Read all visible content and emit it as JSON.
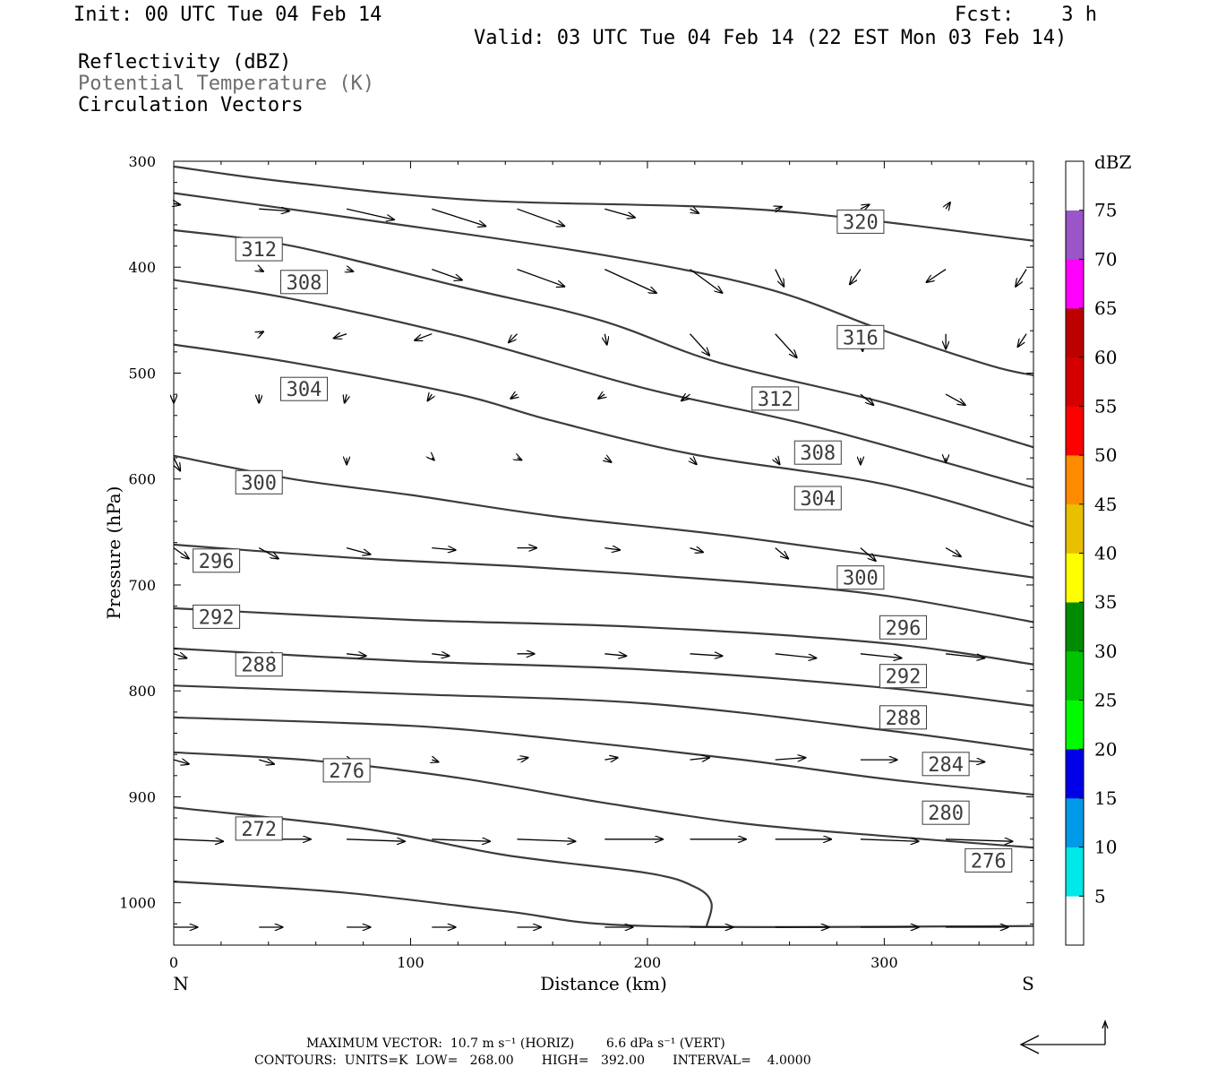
{
  "header": {
    "init": "Init: 00 UTC Tue 04 Feb 14",
    "fcst": "Fcst:    3 h",
    "valid": "Valid: 03 UTC Tue 04 Feb 14 (22 EST Mon 03 Feb 14)"
  },
  "legend": {
    "line1": "Reflectivity (dBZ)",
    "line2": "Potential Temperature (K)",
    "line3": "Circulation Vectors"
  },
  "footer": {
    "line1": "MAXIMUM VECTOR:  10.7 m s⁻¹ (HORIZ)        6.6 dPa s⁻¹ (VERT)",
    "line2": "CONTOURS:  UNITS=K  LOW=   268.00       HIGH=   392.00       INTERVAL=    4.0000"
  },
  "colorbar": {
    "unit": "dBZ",
    "ticks": [
      "5",
      "10",
      "15",
      "20",
      "25",
      "30",
      "35",
      "40",
      "45",
      "50",
      "55",
      "60",
      "65",
      "70",
      "75"
    ],
    "colors": [
      "#ffffff",
      "#00e8e8",
      "#009ae8",
      "#0000e8",
      "#00fa00",
      "#00c400",
      "#008c00",
      "#ffff00",
      "#e8c000",
      "#ff8c00",
      "#ff0000",
      "#d40000",
      "#bc0000",
      "#ff00ff",
      "#9a55c8",
      "#ffffff"
    ]
  },
  "chart_data": {
    "type": "contour-vector-cross-section",
    "xlabel": "Distance (km)",
    "ylabel": "Pressure (hPa)",
    "xlim": [
      0,
      363
    ],
    "ylim": [
      300,
      1040
    ],
    "x_ticks": [
      "0",
      "100",
      "200",
      "300"
    ],
    "x_tick_values": [
      0,
      100,
      200,
      300
    ],
    "y_ticks": [
      "300",
      "400",
      "500",
      "600",
      "700",
      "800",
      "900",
      "1000"
    ],
    "y_tick_values": [
      300,
      400,
      500,
      600,
      700,
      800,
      900,
      1000
    ],
    "left_end": "N",
    "right_end": "S",
    "contour_color": "#3c3c3c",
    "contours": [
      {
        "theta": 320,
        "points": [
          [
            0,
            305
          ],
          [
            50,
            320
          ],
          [
            130,
            337
          ],
          [
            250,
            346
          ],
          [
            363,
            375
          ]
        ]
      },
      {
        "theta": 316,
        "points": [
          [
            0,
            330
          ],
          [
            80,
            355
          ],
          [
            180,
            388
          ],
          [
            250,
            420
          ],
          [
            300,
            460
          ],
          [
            345,
            493
          ],
          [
            363,
            502
          ]
        ]
      },
      {
        "theta": 312,
        "points": [
          [
            0,
            365
          ],
          [
            50,
            380
          ],
          [
            120,
            418
          ],
          [
            180,
            450
          ],
          [
            230,
            490
          ],
          [
            300,
            528
          ],
          [
            363,
            570
          ]
        ]
      },
      {
        "theta": 308,
        "points": [
          [
            0,
            412
          ],
          [
            50,
            430
          ],
          [
            120,
            465
          ],
          [
            200,
            515
          ],
          [
            270,
            550
          ],
          [
            363,
            608
          ]
        ]
      },
      {
        "theta": 304,
        "points": [
          [
            0,
            473
          ],
          [
            50,
            490
          ],
          [
            120,
            520
          ],
          [
            160,
            545
          ],
          [
            220,
            577
          ],
          [
            300,
            605
          ],
          [
            363,
            645
          ]
        ]
      },
      {
        "theta": 300,
        "points": [
          [
            0,
            578
          ],
          [
            50,
            600
          ],
          [
            100,
            615
          ],
          [
            160,
            635
          ],
          [
            240,
            655
          ],
          [
            363,
            693
          ]
        ]
      },
      {
        "theta": 296,
        "points": [
          [
            0,
            662
          ],
          [
            80,
            675
          ],
          [
            150,
            683
          ],
          [
            240,
            697
          ],
          [
            300,
            710
          ],
          [
            363,
            735
          ]
        ]
      },
      {
        "theta": 292,
        "points": [
          [
            0,
            722
          ],
          [
            100,
            733
          ],
          [
            200,
            740
          ],
          [
            300,
            755
          ],
          [
            363,
            775
          ]
        ]
      },
      {
        "theta": 288,
        "points": [
          [
            0,
            760
          ],
          [
            100,
            772
          ],
          [
            200,
            780
          ],
          [
            300,
            797
          ],
          [
            363,
            814
          ]
        ]
      },
      {
        "theta": 284,
        "points": [
          [
            0,
            795
          ],
          [
            100,
            803
          ],
          [
            200,
            812
          ],
          [
            300,
            837
          ],
          [
            363,
            856
          ]
        ]
      },
      {
        "theta": 280,
        "points": [
          [
            0,
            825
          ],
          [
            100,
            833
          ],
          [
            160,
            845
          ],
          [
            240,
            865
          ],
          [
            300,
            883
          ],
          [
            363,
            898
          ]
        ]
      },
      {
        "theta": 276,
        "points": [
          [
            0,
            858
          ],
          [
            60,
            866
          ],
          [
            120,
            882
          ],
          [
            180,
            905
          ],
          [
            240,
            925
          ],
          [
            300,
            937
          ],
          [
            363,
            948
          ]
        ]
      },
      {
        "theta": 272,
        "points": [
          [
            0,
            910
          ],
          [
            80,
            930
          ],
          [
            140,
            955
          ],
          [
            200,
            972
          ],
          [
            220,
            985
          ],
          [
            227,
            1000
          ],
          [
            225,
            1022
          ]
        ]
      },
      {
        "theta": 268,
        "points": [
          [
            0,
            980
          ],
          [
            70,
            990
          ],
          [
            140,
            1008
          ],
          [
            200,
            1022
          ],
          [
            363,
            1022
          ]
        ]
      }
    ],
    "contour_labels": [
      {
        "text": "320",
        "x": 290,
        "p": 357
      },
      {
        "text": "316",
        "x": 290,
        "p": 466
      },
      {
        "text": "312",
        "x": 254,
        "p": 524
      },
      {
        "text": "308",
        "x": 272,
        "p": 575
      },
      {
        "text": "304",
        "x": 272,
        "p": 618
      },
      {
        "text": "300",
        "x": 290,
        "p": 693
      },
      {
        "text": "296",
        "x": 308,
        "p": 740
      },
      {
        "text": "292",
        "x": 308,
        "p": 786
      },
      {
        "text": "288",
        "x": 308,
        "p": 825
      },
      {
        "text": "284",
        "x": 326,
        "p": 869
      },
      {
        "text": "280",
        "x": 326,
        "p": 915
      },
      {
        "text": "276",
        "x": 344,
        "p": 960
      },
      {
        "text": "272",
        "x": 36,
        "p": 930
      },
      {
        "text": "276",
        "x": 73,
        "p": 875
      },
      {
        "text": "288",
        "x": 36,
        "p": 775
      },
      {
        "text": "292",
        "x": 18,
        "p": 730
      },
      {
        "text": "296",
        "x": 18,
        "p": 677
      },
      {
        "text": "300",
        "x": 36,
        "p": 603
      },
      {
        "text": "304",
        "x": 55,
        "p": 515
      },
      {
        "text": "308",
        "x": 55,
        "p": 414
      },
      {
        "text": "312",
        "x": 36,
        "p": 383
      }
    ],
    "vectors": [
      {
        "x": 0,
        "p": 340,
        "u": 3,
        "w": 0.5
      },
      {
        "x": 36,
        "p": 345,
        "u": 14,
        "w": 1
      },
      {
        "x": 73,
        "p": 345,
        "u": 22,
        "w": 5
      },
      {
        "x": 109,
        "p": 345,
        "u": 25,
        "w": 8
      },
      {
        "x": 145,
        "p": 345,
        "u": 22,
        "w": 8
      },
      {
        "x": 182,
        "p": 345,
        "u": 14,
        "w": 4
      },
      {
        "x": 218,
        "p": 345,
        "u": 4,
        "w": 2
      },
      {
        "x": 254,
        "p": 345,
        "u": 3,
        "w": -1
      },
      {
        "x": 290,
        "p": 345,
        "u": 4,
        "w": -2
      },
      {
        "x": 326,
        "p": 345,
        "u": 2,
        "w": -3
      },
      {
        "x": 36,
        "p": 402,
        "u": 2,
        "w": 1
      },
      {
        "x": 73,
        "p": 402,
        "u": 3,
        "w": 1
      },
      {
        "x": 109,
        "p": 402,
        "u": 14,
        "w": 5
      },
      {
        "x": 145,
        "p": 402,
        "u": 22,
        "w": 8
      },
      {
        "x": 182,
        "p": 402,
        "u": 24,
        "w": 11
      },
      {
        "x": 218,
        "p": 402,
        "u": 15,
        "w": 11
      },
      {
        "x": 254,
        "p": 402,
        "u": 4,
        "w": 8
      },
      {
        "x": 290,
        "p": 402,
        "u": -5,
        "w": 7
      },
      {
        "x": 326,
        "p": 402,
        "u": -9,
        "w": 6
      },
      {
        "x": 360,
        "p": 402,
        "u": -5,
        "w": 8
      },
      {
        "x": 36,
        "p": 463,
        "u": 2,
        "w": -1
      },
      {
        "x": 73,
        "p": 463,
        "u": -6,
        "w": 2
      },
      {
        "x": 109,
        "p": 463,
        "u": -8,
        "w": 3
      },
      {
        "x": 145,
        "p": 463,
        "u": -4,
        "w": 4
      },
      {
        "x": 182,
        "p": 463,
        "u": 1,
        "w": 5
      },
      {
        "x": 218,
        "p": 463,
        "u": 9,
        "w": 10
      },
      {
        "x": 254,
        "p": 463,
        "u": 10,
        "w": 11
      },
      {
        "x": 290,
        "p": 463,
        "u": 1,
        "w": 8
      },
      {
        "x": 326,
        "p": 463,
        "u": 0,
        "w": 7
      },
      {
        "x": 360,
        "p": 463,
        "u": -4,
        "w": 6
      },
      {
        "x": 0,
        "p": 520,
        "u": 0,
        "w": 4
      },
      {
        "x": 36,
        "p": 520,
        "u": 0,
        "w": 4
      },
      {
        "x": 73,
        "p": 520,
        "u": -1,
        "w": 4
      },
      {
        "x": 109,
        "p": 520,
        "u": -2,
        "w": 3
      },
      {
        "x": 145,
        "p": 520,
        "u": -3,
        "w": 2
      },
      {
        "x": 182,
        "p": 520,
        "u": -3,
        "w": 2
      },
      {
        "x": 218,
        "p": 520,
        "u": -4,
        "w": 3
      },
      {
        "x": 254,
        "p": 520,
        "u": 0,
        "w": 6
      },
      {
        "x": 290,
        "p": 520,
        "u": 6,
        "w": 5
      },
      {
        "x": 326,
        "p": 520,
        "u": 9,
        "w": 5
      },
      {
        "x": 0,
        "p": 580,
        "u": 3,
        "w": 6
      },
      {
        "x": 73,
        "p": 580,
        "u": 0,
        "w": 3
      },
      {
        "x": 109,
        "p": 580,
        "u": 1,
        "w": 1
      },
      {
        "x": 145,
        "p": 580,
        "u": 2,
        "w": 1
      },
      {
        "x": 182,
        "p": 580,
        "u": 3,
        "w": 2
      },
      {
        "x": 218,
        "p": 580,
        "u": 3,
        "w": 3
      },
      {
        "x": 254,
        "p": 580,
        "u": 2,
        "w": 3
      },
      {
        "x": 290,
        "p": 580,
        "u": 0,
        "w": 3
      },
      {
        "x": 326,
        "p": 580,
        "u": 0,
        "w": 2
      },
      {
        "x": 0,
        "p": 665,
        "u": 7,
        "w": 5
      },
      {
        "x": 36,
        "p": 665,
        "u": 9,
        "w": 5
      },
      {
        "x": 73,
        "p": 665,
        "u": 11,
        "w": 3
      },
      {
        "x": 109,
        "p": 665,
        "u": 11,
        "w": 1
      },
      {
        "x": 145,
        "p": 665,
        "u": 9,
        "w": 0
      },
      {
        "x": 182,
        "p": 665,
        "u": 7,
        "w": 1
      },
      {
        "x": 218,
        "p": 665,
        "u": 6,
        "w": 2
      },
      {
        "x": 254,
        "p": 665,
        "u": 6,
        "w": 5
      },
      {
        "x": 290,
        "p": 665,
        "u": 7,
        "w": 6
      },
      {
        "x": 326,
        "p": 665,
        "u": 7,
        "w": 4
      },
      {
        "x": 0,
        "p": 765,
        "u": 6,
        "w": 2
      },
      {
        "x": 36,
        "p": 765,
        "u": 9,
        "w": 1
      },
      {
        "x": 73,
        "p": 765,
        "u": 9,
        "w": 1
      },
      {
        "x": 109,
        "p": 765,
        "u": 8,
        "w": 1
      },
      {
        "x": 145,
        "p": 765,
        "u": 8,
        "w": 0
      },
      {
        "x": 182,
        "p": 765,
        "u": 10,
        "w": 1
      },
      {
        "x": 218,
        "p": 765,
        "u": 15,
        "w": 1
      },
      {
        "x": 254,
        "p": 765,
        "u": 19,
        "w": 2
      },
      {
        "x": 290,
        "p": 765,
        "u": 19,
        "w": 2
      },
      {
        "x": 326,
        "p": 765,
        "u": 18,
        "w": 2
      },
      {
        "x": 0,
        "p": 865,
        "u": 7,
        "w": 2
      },
      {
        "x": 36,
        "p": 865,
        "u": 7,
        "w": 2
      },
      {
        "x": 73,
        "p": 865,
        "u": 3,
        "w": 1
      },
      {
        "x": 109,
        "p": 865,
        "u": 3,
        "w": 1
      },
      {
        "x": 145,
        "p": 865,
        "u": 5,
        "w": -1
      },
      {
        "x": 182,
        "p": 865,
        "u": 6,
        "w": -1
      },
      {
        "x": 218,
        "p": 865,
        "u": 9,
        "w": -1
      },
      {
        "x": 254,
        "p": 865,
        "u": 14,
        "w": -1
      },
      {
        "x": 290,
        "p": 865,
        "u": 17,
        "w": 0
      },
      {
        "x": 326,
        "p": 865,
        "u": 18,
        "w": 1
      },
      {
        "x": 0,
        "p": 940,
        "u": 23,
        "w": 1
      },
      {
        "x": 36,
        "p": 940,
        "u": 24,
        "w": 0
      },
      {
        "x": 73,
        "p": 940,
        "u": 27,
        "w": 1
      },
      {
        "x": 109,
        "p": 940,
        "u": 27,
        "w": 1
      },
      {
        "x": 145,
        "p": 940,
        "u": 27,
        "w": 1
      },
      {
        "x": 182,
        "p": 940,
        "u": 27,
        "w": 0
      },
      {
        "x": 218,
        "p": 940,
        "u": 26,
        "w": 0
      },
      {
        "x": 254,
        "p": 940,
        "u": 26,
        "w": 0
      },
      {
        "x": 290,
        "p": 940,
        "u": 27,
        "w": 1
      },
      {
        "x": 326,
        "p": 940,
        "u": 31,
        "w": 1
      },
      {
        "x": 0,
        "p": 1040,
        "u": 11,
        "w": 0.5
      },
      {
        "x": 36,
        "p": 1040,
        "u": 11,
        "w": 0.5
      },
      {
        "x": 73,
        "p": 1040,
        "u": 11,
        "w": 0.5
      },
      {
        "x": 109,
        "p": 1040,
        "u": 11,
        "w": 0.5
      },
      {
        "x": 145,
        "p": 1040,
        "u": 11,
        "w": 0.5
      },
      {
        "x": 182,
        "p": 1040,
        "u": 13,
        "w": 0.5
      },
      {
        "x": 218,
        "p": 1040,
        "u": 20,
        "w": 0
      },
      {
        "x": 254,
        "p": 1040,
        "u": 25,
        "w": 0
      },
      {
        "x": 290,
        "p": 1040,
        "u": 27,
        "w": 0
      },
      {
        "x": 326,
        "p": 1040,
        "u": 29,
        "w": 0
      }
    ]
  }
}
